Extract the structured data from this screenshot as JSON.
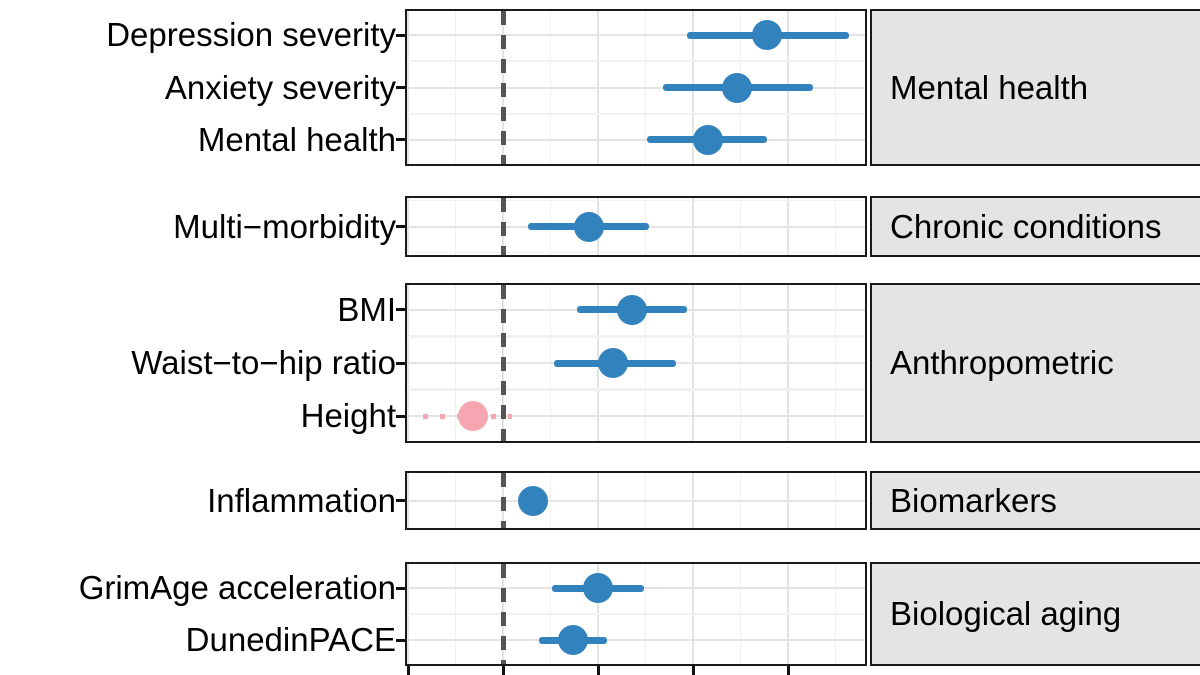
{
  "chart_data": {
    "type": "scatter",
    "subtype": "forest-plot",
    "title": "",
    "xlabel": "",
    "ylabel": "",
    "legend": "none",
    "grid": "on",
    "x_axis": {
      "tick_values": [
        0.5,
        1.0,
        1.5,
        2.0,
        2.5
      ],
      "tick_labels_visible": false,
      "note": "x-axis tick labels are cropped below the bottom edge of the screenshot; values assume the dashed reference = 1.0 with one major gridline per 0.5",
      "reference_line_value": 1.0,
      "visible_range": [
        0.49,
        2.91
      ]
    },
    "panels": [
      {
        "strip_label": "Mental health",
        "rows": [
          {
            "label": "Depression severity",
            "estimate": 2.39,
            "ci_low": 1.97,
            "ci_high": 2.82,
            "significant": true
          },
          {
            "label": "Anxiety severity",
            "estimate": 2.23,
            "ci_low": 1.84,
            "ci_high": 2.63,
            "significant": true
          },
          {
            "label": "Mental health",
            "estimate": 2.08,
            "ci_low": 1.76,
            "ci_high": 2.39,
            "significant": true
          }
        ]
      },
      {
        "strip_label": "Chronic conditions",
        "rows": [
          {
            "label": "Multi−morbidity",
            "estimate": 1.45,
            "ci_low": 1.13,
            "ci_high": 1.77,
            "significant": true
          }
        ]
      },
      {
        "strip_label": "Anthropometric",
        "rows": [
          {
            "label": "BMI",
            "estimate": 1.68,
            "ci_low": 1.39,
            "ci_high": 1.97,
            "significant": true
          },
          {
            "label": "Waist−to−hip ratio",
            "estimate": 1.58,
            "ci_low": 1.27,
            "ci_high": 1.91,
            "significant": true
          },
          {
            "label": "Height",
            "estimate": 0.84,
            "ci_low": 0.58,
            "ci_high": 1.05,
            "significant": false
          }
        ]
      },
      {
        "strip_label": "Biomarkers",
        "rows": [
          {
            "label": "Inflammation",
            "estimate": 1.16,
            "ci_low": 1.12,
            "ci_high": 1.2,
            "significant": true
          }
        ]
      },
      {
        "strip_label": "Biological aging",
        "rows": [
          {
            "label": "GrimAge acceleration",
            "estimate": 1.5,
            "ci_low": 1.26,
            "ci_high": 1.74,
            "significant": true
          },
          {
            "label": "DunedinPACE",
            "estimate": 1.37,
            "ci_low": 1.19,
            "ci_high": 1.55,
            "significant": true
          }
        ]
      }
    ],
    "colors": {
      "point_significant": "#3182bd",
      "point_nonsignificant": "#f5a6b0",
      "reference_line": "#555555",
      "strip_background": "#e4e4e4",
      "panel_border": "#1a1a1a",
      "grid_major": "#e4e4e4",
      "grid_minor": "#f1f1f1",
      "text": "#000000"
    }
  }
}
